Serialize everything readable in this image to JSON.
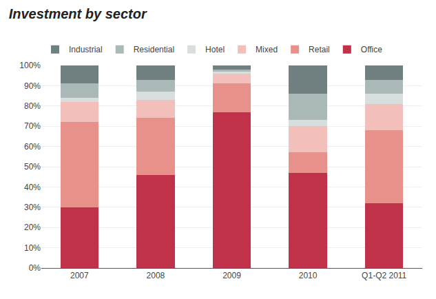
{
  "chart_data": {
    "type": "bar",
    "stacked": true,
    "title": "Investment by sector",
    "categories": [
      "2007",
      "2008",
      "2009",
      "2010",
      "Q1-Q2 2011"
    ],
    "series": [
      {
        "name": "Office",
        "color": "#c0314a",
        "values": [
          30,
          46,
          77,
          47,
          32
        ]
      },
      {
        "name": "Retail",
        "color": "#e8908a",
        "values": [
          42,
          28,
          14,
          10,
          36
        ]
      },
      {
        "name": "Mixed",
        "color": "#f2bfba",
        "values": [
          10,
          9,
          5,
          13,
          13
        ]
      },
      {
        "name": "Hotel",
        "color": "#d8dede",
        "values": [
          2,
          4,
          1,
          3,
          5
        ]
      },
      {
        "name": "Residential",
        "color": "#aab8b8",
        "values": [
          7,
          6,
          1,
          13,
          7
        ]
      },
      {
        "name": "Industrial",
        "color": "#708080",
        "values": [
          9,
          7,
          2,
          14,
          7
        ]
      }
    ],
    "ylim": [
      0,
      100
    ],
    "yticks": [
      {
        "value": 0,
        "label": "0%"
      },
      {
        "value": 10,
        "label": "10%"
      },
      {
        "value": 20,
        "label": "20%"
      },
      {
        "value": 30,
        "label": "30%"
      },
      {
        "value": 40,
        "label": "40%"
      },
      {
        "value": 50,
        "label": "50%"
      },
      {
        "value": 60,
        "label": "60%"
      },
      {
        "value": 70,
        "label": "70%"
      },
      {
        "value": 80,
        "label": "80%"
      },
      {
        "value": 90,
        "label": "90%"
      },
      {
        "value": 100,
        "label": "100%"
      }
    ],
    "grid": true,
    "legend": "top"
  }
}
